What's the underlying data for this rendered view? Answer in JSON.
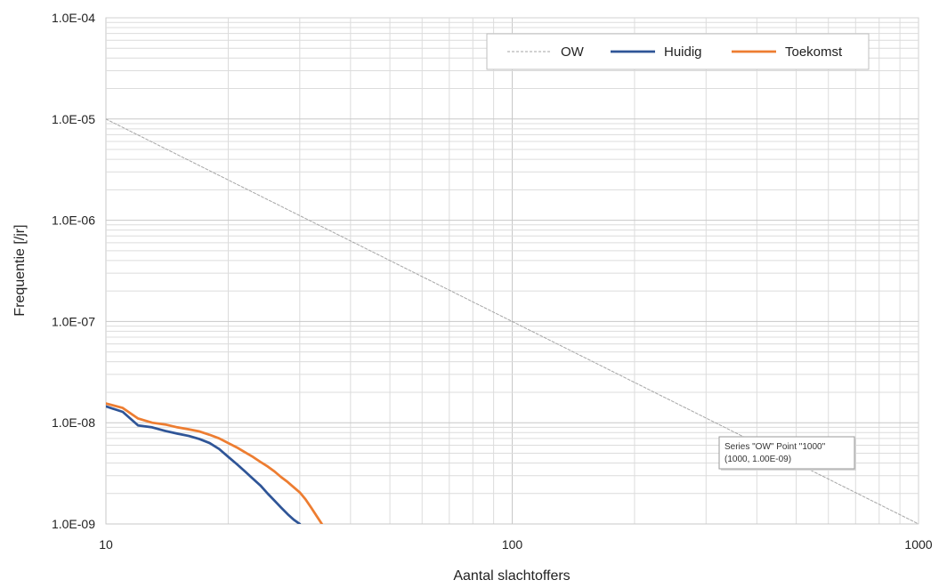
{
  "chart_data": {
    "type": "line",
    "title": "",
    "xlabel": "Aantal slachtoffers",
    "ylabel": "Frequentie [/jr]",
    "x_scale": "log",
    "y_scale": "log",
    "xlim": [
      10,
      1000
    ],
    "ylim": [
      1e-09,
      0.0001
    ],
    "grid": true,
    "legend_position": "top-right",
    "x_ticks": [
      {
        "value": 10,
        "label": "10"
      },
      {
        "value": 100,
        "label": "100"
      },
      {
        "value": 1000,
        "label": "1000"
      }
    ],
    "y_ticks": [
      {
        "value": 1e-09,
        "label": "1.0E-09"
      },
      {
        "value": 1e-08,
        "label": "1.0E-08"
      },
      {
        "value": 1e-07,
        "label": "1.0E-07"
      },
      {
        "value": 1e-06,
        "label": "1.0E-06"
      },
      {
        "value": 1e-05,
        "label": "1.0E-05"
      },
      {
        "value": 0.0001,
        "label": "1.0E-04"
      }
    ],
    "series": [
      {
        "name": "OW",
        "color": "#a6a6a6",
        "style": "dashed",
        "x": [
          10,
          1000
        ],
        "y": [
          1e-05,
          1e-09
        ]
      },
      {
        "name": "Huidig",
        "color": "#2f5597",
        "style": "solid",
        "x": [
          10,
          11,
          12,
          13,
          14,
          15,
          16,
          17,
          18,
          19,
          20,
          21,
          22,
          23,
          24,
          25,
          26,
          27,
          28,
          29,
          30
        ],
        "y": [
          1.45e-08,
          1.28e-08,
          9.4e-09,
          9e-09,
          8.3e-09,
          7.8e-09,
          7.4e-09,
          6.9e-09,
          6.3e-09,
          5.5e-09,
          4.6e-09,
          3.9e-09,
          3.3e-09,
          2.8e-09,
          2.4e-09,
          2e-09,
          1.7e-09,
          1.45e-09,
          1.25e-09,
          1.1e-09,
          1e-09
        ]
      },
      {
        "name": "Toekomst",
        "color": "#ed7d31",
        "style": "solid",
        "x": [
          10,
          11,
          12,
          13,
          14,
          15,
          16,
          17,
          18,
          19,
          20,
          21,
          22,
          23,
          24,
          25,
          26,
          27,
          28,
          29,
          30,
          31,
          32,
          33,
          34
        ],
        "y": [
          1.55e-08,
          1.4e-08,
          1.1e-08,
          1e-08,
          9.6e-09,
          9e-09,
          8.6e-09,
          8.2e-09,
          7.6e-09,
          7e-09,
          6.3e-09,
          5.7e-09,
          5.1e-09,
          4.6e-09,
          4.1e-09,
          3.7e-09,
          3.3e-09,
          2.9e-09,
          2.6e-09,
          2.3e-09,
          2.05e-09,
          1.75e-09,
          1.45e-09,
          1.2e-09,
          1e-09
        ]
      }
    ],
    "tooltip": {
      "line1": "Series \"OW\" Point \"1000\"",
      "line2": "(1000, 1.00E-09)"
    }
  }
}
